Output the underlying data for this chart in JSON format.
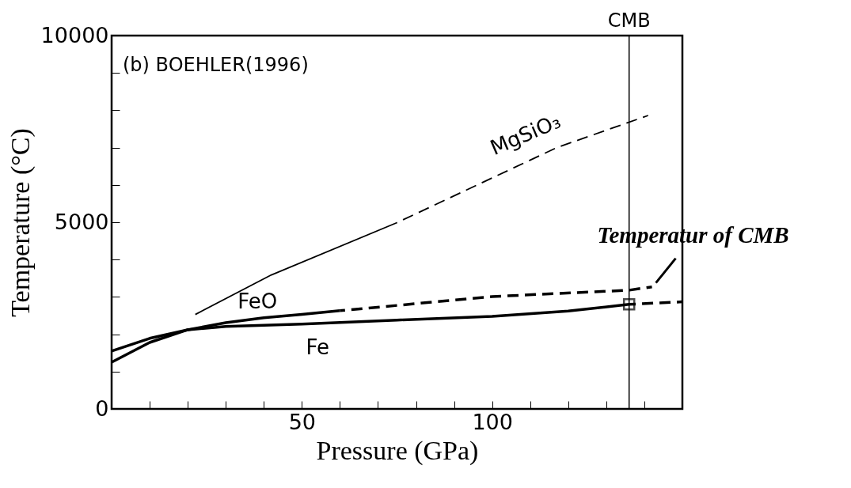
{
  "chart_data": {
    "type": "line",
    "xlabel": "Pressure (GPa)",
    "ylabel": "Temperature (°C)",
    "xlim": [
      0,
      150
    ],
    "ylim": [
      0,
      10000
    ],
    "xticks": [
      {
        "value": 0,
        "label": null
      },
      {
        "value": 10,
        "label": null
      },
      {
        "value": 20,
        "label": null
      },
      {
        "value": 30,
        "label": null
      },
      {
        "value": 40,
        "label": null
      },
      50,
      {
        "value": 60,
        "label": null
      },
      {
        "value": 70,
        "label": null
      },
      {
        "value": 80,
        "label": null
      },
      {
        "value": 90,
        "label": null
      },
      100,
      {
        "value": 110,
        "label": null
      },
      {
        "value": 120,
        "label": null
      },
      {
        "value": 130,
        "label": null
      },
      {
        "value": 140,
        "label": null
      }
    ],
    "yticks": [
      0,
      {
        "value": 1000,
        "label": null
      },
      {
        "value": 2000,
        "label": null
      },
      {
        "value": 3000,
        "label": null
      },
      {
        "value": 4000,
        "label": null
      },
      5000,
      {
        "value": 6000,
        "label": null
      },
      {
        "value": 7000,
        "label": null
      },
      {
        "value": 8000,
        "label": null
      },
      {
        "value": 9000,
        "label": null
      },
      10000
    ],
    "grid": false,
    "series": [
      {
        "name": "Fe",
        "color": "#000000",
        "line_style": "solid",
        "x": [
          0,
          10,
          20,
          30,
          50,
          75,
          100,
          120,
          136
        ],
        "values": [
          1550,
          1890,
          2120,
          2210,
          2270,
          2380,
          2480,
          2620,
          2800
        ]
      },
      {
        "color": "#000000",
        "line_style": "dashed",
        "x": [
          136,
          150
        ],
        "values": [
          2800,
          2870
        ]
      },
      {
        "name": "FeO",
        "color": "#000000",
        "line_style": "solid",
        "x": [
          0,
          10,
          20,
          30,
          40,
          50,
          60
        ],
        "values": [
          1250,
          1780,
          2120,
          2310,
          2440,
          2530,
          2630
        ]
      },
      {
        "color": "#000000",
        "line_style": "dashed",
        "x": [
          60,
          100,
          136,
          142
        ],
        "values": [
          2630,
          3010,
          3180,
          3270
        ]
      },
      {
        "color": "#000000",
        "line_style": "solid",
        "x": [
          22,
          42,
          75
        ],
        "values": [
          2530,
          3590,
          4990
        ]
      },
      {
        "name": "MgSiO₃",
        "color": "#000000",
        "line_style": "dashed",
        "x": [
          75,
          117,
          141
        ],
        "values": [
          4990,
          7000,
          7860
        ]
      },
      {
        "type": "scatter",
        "marker": "square",
        "color": "#000000",
        "x": [
          136
        ],
        "values": [
          2800
        ]
      }
    ],
    "ref_lines": [
      {
        "axis": "x",
        "value": 136,
        "label": "CMB",
        "color": "#000000"
      }
    ],
    "annotations": [
      "(b) BOEHLER(1996)",
      {
        "text": "Temperatur of CMB",
        "x": 142,
        "y": 3270
      }
    ]
  }
}
